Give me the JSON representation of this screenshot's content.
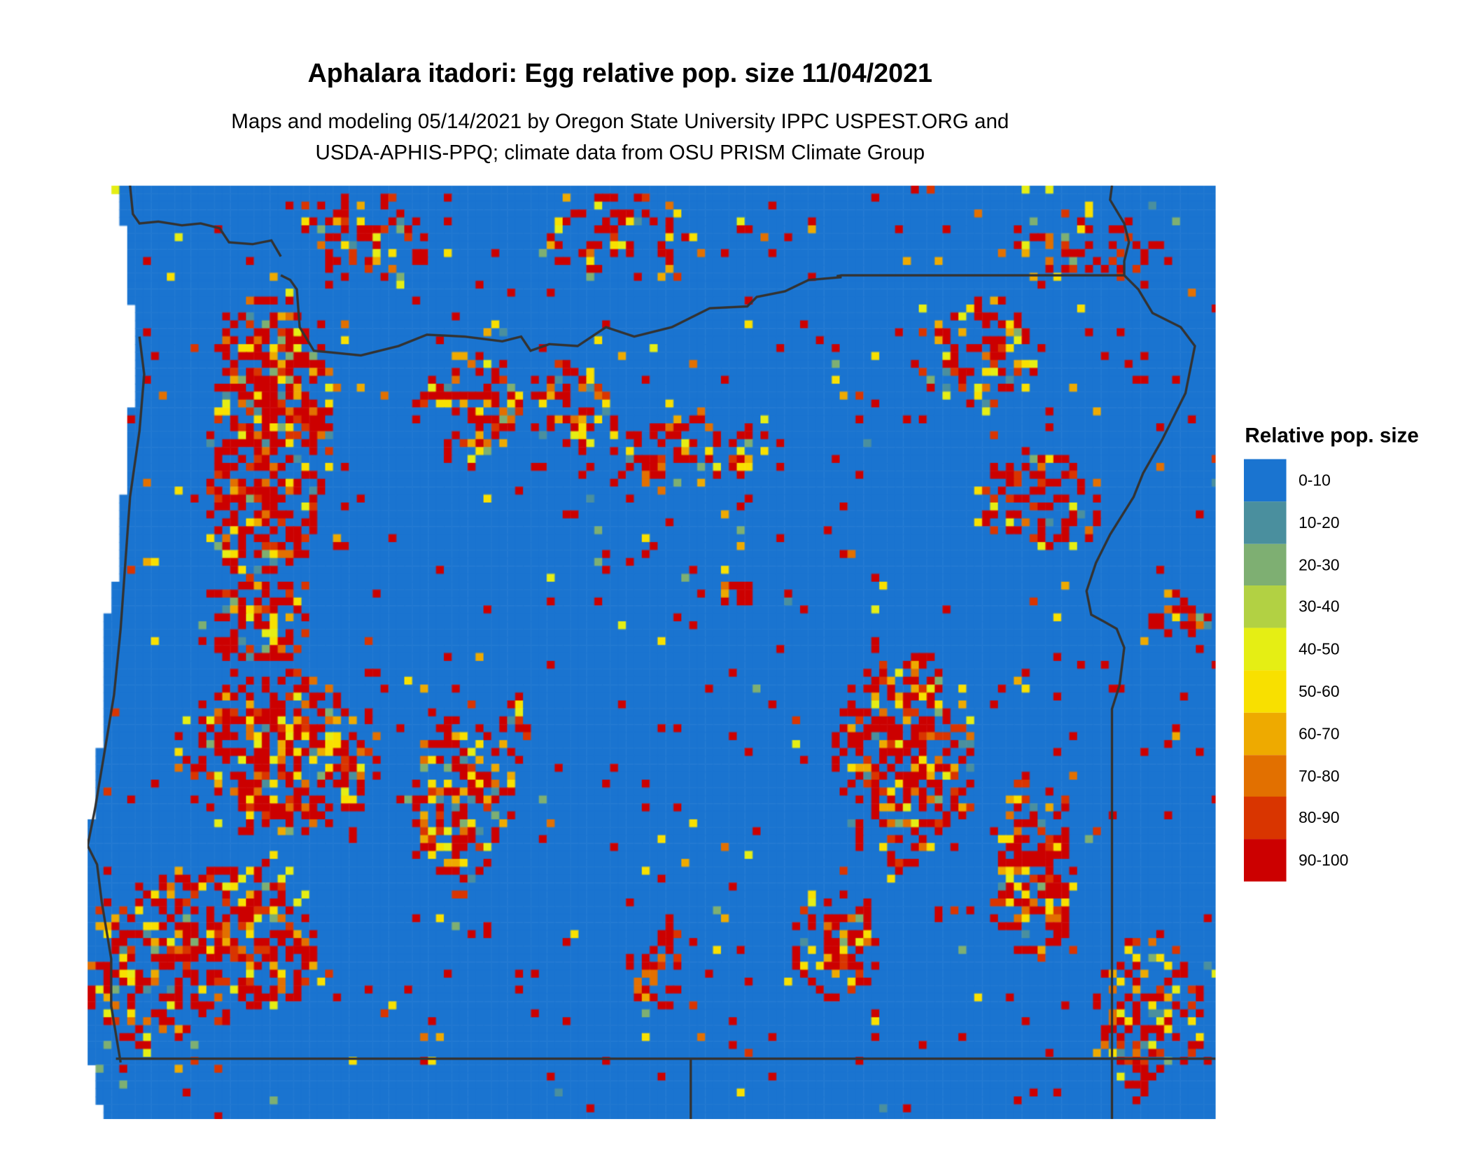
{
  "title": "Aphalara itadori: Egg relative pop. size 11/04/2021",
  "subtitle_line1": "Maps and modeling 05/14/2021 by Oregon State University IPPC USPEST.ORG and",
  "subtitle_line2": "USDA-APHIS-PPQ; climate data from OSU PRISM Climate Group",
  "legend": {
    "title": "Relative pop. size",
    "items": [
      {
        "label": "0-10",
        "color": "#1a74d0"
      },
      {
        "label": "10-20",
        "color": "#4a8f9e"
      },
      {
        "label": "20-30",
        "color": "#7eaf72"
      },
      {
        "label": "30-40",
        "color": "#b2d143"
      },
      {
        "label": "40-50",
        "color": "#e5ee14"
      },
      {
        "label": "50-60",
        "color": "#f8e000"
      },
      {
        "label": "60-70",
        "color": "#eeaa00"
      },
      {
        "label": "70-80",
        "color": "#e27000"
      },
      {
        "label": "80-90",
        "color": "#d93500"
      },
      {
        "label": "90-100",
        "color": "#cc0000"
      }
    ]
  },
  "map": {
    "border_color": "#333333",
    "background_class": "0-10"
  }
}
